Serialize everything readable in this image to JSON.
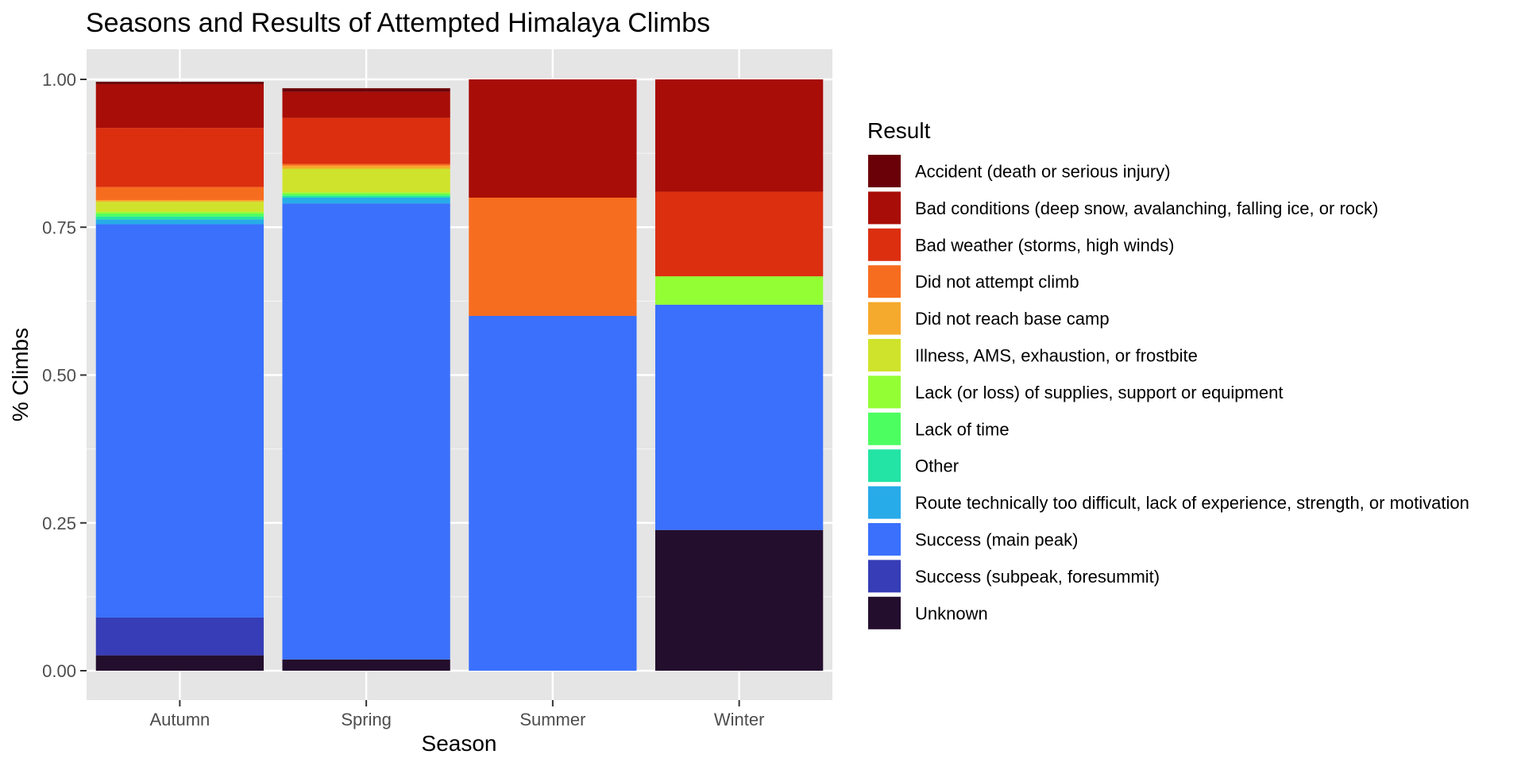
{
  "chart_data": {
    "type": "bar",
    "stacked": true,
    "normalized": true,
    "title": "Seasons and Results of Attempted Himalaya Climbs",
    "xlabel": "Season",
    "ylabel": "% Climbs",
    "ylim": [
      0,
      1
    ],
    "yticks": [
      "0.00",
      "0.25",
      "0.50",
      "0.75",
      "1.00"
    ],
    "yticks_values": [
      0,
      0.25,
      0.5,
      0.75,
      1.0
    ],
    "grid": true,
    "legend_title": "Result",
    "legend_position": "right",
    "categories": [
      "Autumn",
      "Spring",
      "Summer",
      "Winter"
    ],
    "series": [
      {
        "name": "Accident (death or serious injury)",
        "color": "#6a0008",
        "values": [
          0.004,
          0.006,
          0.0,
          0.0
        ]
      },
      {
        "name": "Bad conditions (deep snow, avalanching, falling ice, or rock)",
        "color": "#a80d07",
        "values": [
          0.074,
          0.044,
          0.2,
          0.19
        ]
      },
      {
        "name": "Bad weather (storms, high winds)",
        "color": "#db2f10",
        "values": [
          0.1,
          0.078,
          0.0,
          0.143
        ]
      },
      {
        "name": "Did not attempt climb",
        "color": "#f76d1f",
        "values": [
          0.022,
          0.003,
          0.2,
          0.0
        ]
      },
      {
        "name": "Did not reach base camp",
        "color": "#f6aa2d",
        "values": [
          0.003,
          0.005,
          0.0,
          0.0
        ]
      },
      {
        "name": "Illness, AMS, exhaustion, or frostbite",
        "color": "#d0e32c",
        "values": [
          0.017,
          0.04,
          0.0,
          0.0
        ]
      },
      {
        "name": "Lack (or loss) of supplies, support or equipment",
        "color": "#94fe35",
        "values": [
          0.003,
          0.003,
          0.0,
          0.048
        ]
      },
      {
        "name": "Lack of time",
        "color": "#4dfe61",
        "values": [
          0.005,
          0.003,
          0.0,
          0.0
        ]
      },
      {
        "name": "Other",
        "color": "#23e4a4",
        "values": [
          0.005,
          0.003,
          0.0,
          0.0
        ]
      },
      {
        "name": "Route technically too difficult, lack of experience, strength, or motivation",
        "color": "#28abe9",
        "values": [
          0.008,
          0.01,
          0.0,
          0.0
        ]
      },
      {
        "name": "Success (main peak)",
        "color": "#3a70fc",
        "values": [
          0.665,
          0.771,
          0.6,
          0.381
        ]
      },
      {
        "name": "Success (subpeak, foresummit)",
        "color": "#363db6",
        "values": [
          0.064,
          0.0,
          0.0,
          0.0
        ]
      },
      {
        "name": "Unknown",
        "color": "#240e2d",
        "values": [
          0.026,
          0.019,
          0.0,
          0.238
        ]
      }
    ]
  }
}
